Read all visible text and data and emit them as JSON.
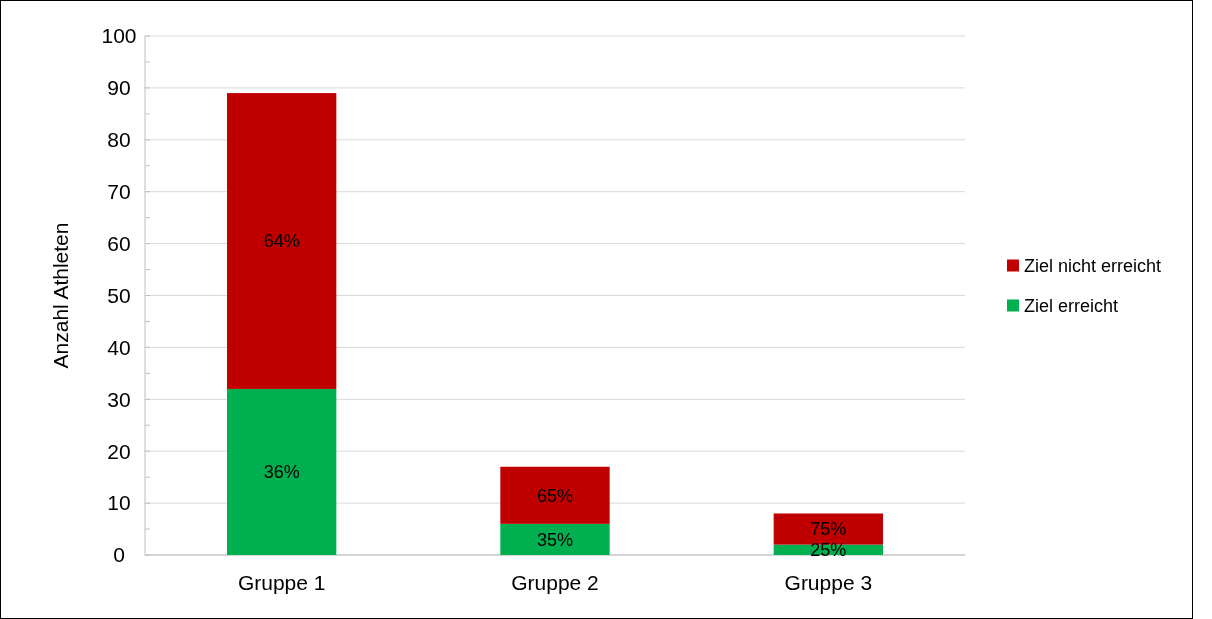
{
  "chart_data": {
    "type": "bar",
    "stacked": true,
    "ylabel": "Anzahl Athleten",
    "categories": [
      "Gruppe 1",
      "Gruppe 2",
      "Gruppe 3"
    ],
    "series": [
      {
        "name": "Ziel erreicht",
        "color": "#00b050",
        "values": [
          32,
          6,
          2
        ]
      },
      {
        "name": "Ziel nicht erreicht",
        "color": "#c00000",
        "values": [
          57,
          11,
          6
        ]
      }
    ],
    "annotations": [
      "36%",
      "64%",
      "35%",
      "65%",
      "25%",
      "75%"
    ],
    "ylim": [
      0,
      100
    ],
    "yticks": [
      0,
      {
        "value": 5,
        "label": null
      },
      10,
      {
        "value": 15,
        "label": null
      },
      20,
      {
        "value": 25,
        "label": null
      },
      30,
      {
        "value": 35,
        "label": null
      },
      40,
      {
        "value": 45,
        "label": null
      },
      50,
      {
        "value": 55,
        "label": null
      },
      60,
      {
        "value": 65,
        "label": null
      },
      70,
      {
        "value": 75,
        "label": null
      },
      80,
      {
        "value": 85,
        "label": null
      },
      90,
      {
        "value": 95,
        "label": null
      },
      100
    ],
    "grid": "y",
    "legend": "right"
  }
}
